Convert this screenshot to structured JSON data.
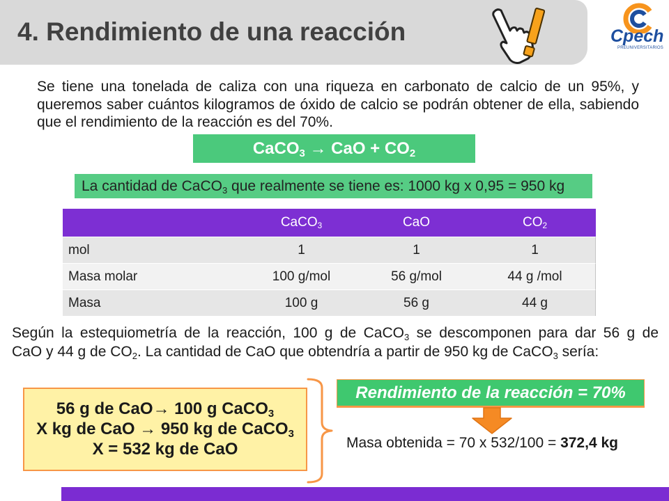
{
  "slide": {
    "title": "4. Rendimiento de una reacción",
    "title_icon": "hand-exclamation-icon",
    "logo": {
      "name": "Cpech",
      "tagline": "PREUNIVERSITARIOS",
      "icon": "cpech-logo-icon"
    }
  },
  "problem_statement": "Se tiene una tonelada de caliza con una riqueza en carbonato de calcio de un 95%, y queremos saber cuántos kilogramos de óxido de calcio se podrán obtener de ella, sabiendo que el rendimiento de la reacción es del 70%.",
  "equation": [
    "CaCO",
    "3",
    " → CaO + CO",
    "2"
  ],
  "pure_amount": [
    "La cantidad de CaCO",
    "3",
    " que realmente se tiene es: 1000 kg x 0,95 = 950 kg"
  ],
  "table": {
    "header": [
      [
        "CaCO",
        "3"
      ],
      [
        "CaO"
      ],
      [
        "CO",
        "2"
      ]
    ],
    "rows": [
      {
        "label": "mol",
        "values": [
          "1",
          "1",
          "1"
        ]
      },
      {
        "label": "Masa molar",
        "values": [
          "100 g/mol",
          "56 g/mol",
          "44 g /mol"
        ]
      },
      {
        "label": "Masa",
        "values": [
          "100 g",
          "56 g",
          "44 g"
        ]
      }
    ]
  },
  "stoichiometry": {
    "line_1": [
      "Según la estequiometría de la reacción, 100 g de CaCO",
      "3",
      "  se descomponen para dar 56 g de"
    ],
    "line_2": [
      "CaO y 44 g de CO",
      "2",
      ". La cantidad de CaO que obtendría a partir de 950 kg de CaCO",
      "3",
      " sería:"
    ]
  },
  "calculation": [
    [
      "56 g de CaO→ 100 g CaCO",
      "3"
    ],
    [
      "X kg de CaO → 950 kg de CaCO",
      "3"
    ],
    [
      "X = 532 kg de CaO"
    ]
  ],
  "yield_label": "Rendimiento de la reacción = 70%",
  "result": {
    "label": "Masa obtenida = 70 x 532/100 = ",
    "value": "372,4 kg"
  },
  "icons": {
    "brace": "right-brace-icon",
    "arrow": "down-arrow-icon"
  },
  "colors": {
    "header_grey": "#d9d9d9",
    "green": "#4bc97c",
    "purple": "#7d2fd3",
    "orange": "#f79646",
    "yellow": "#fff2a6",
    "logo_blue": "#1e4f9f"
  }
}
